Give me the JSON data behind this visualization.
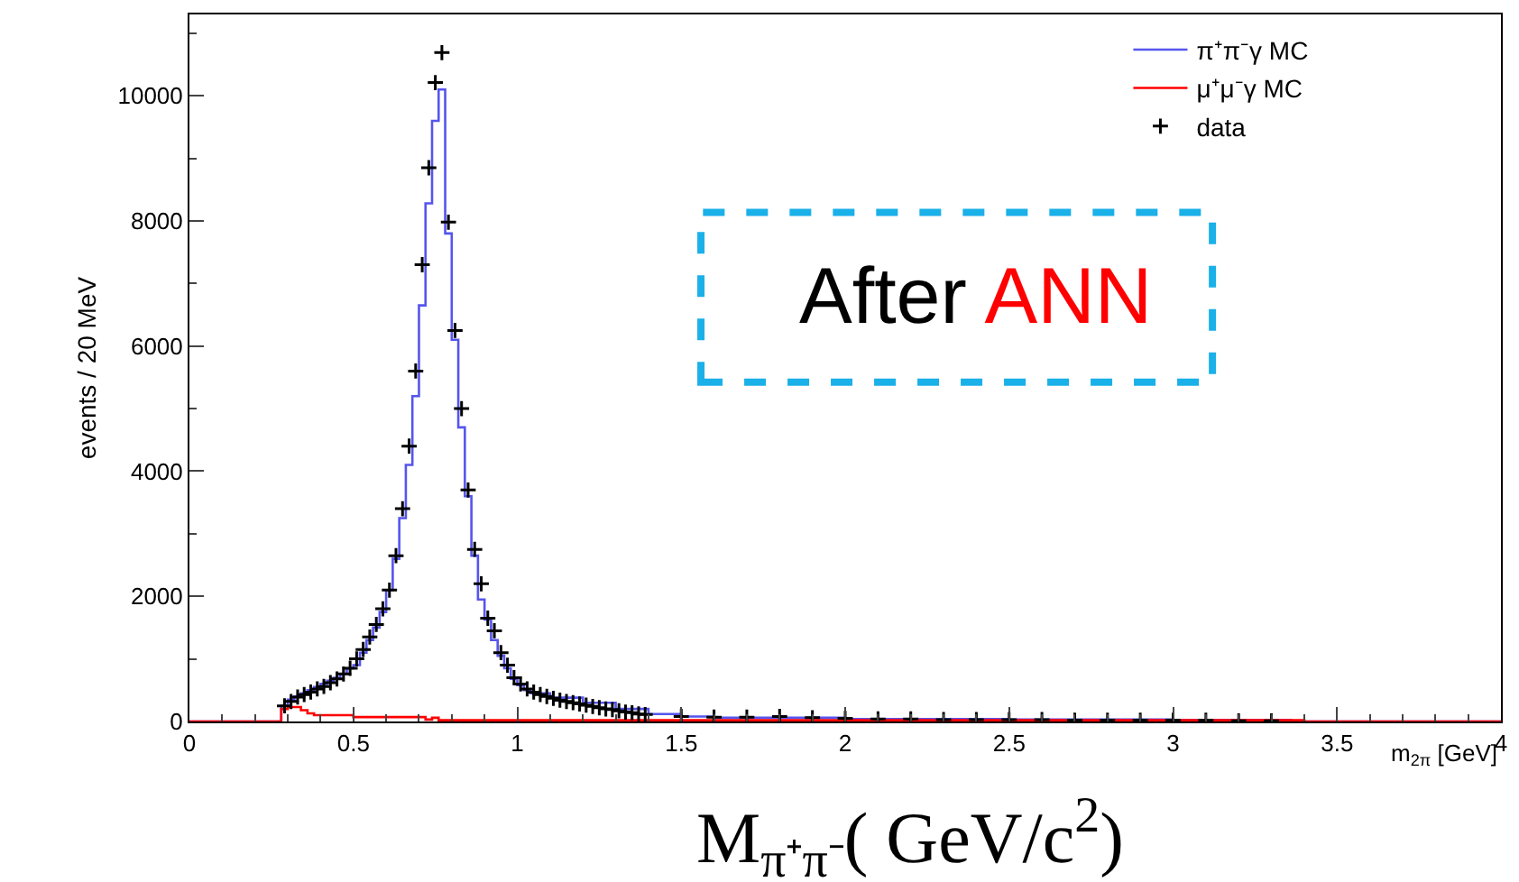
{
  "chart_data": {
    "type": "step",
    "xlabel": "m$_{2π}$ [GeV]",
    "ylabel": "events / 20 MeV",
    "xlim": [
      0,
      4
    ],
    "xticks": [
      0,
      0.5,
      1,
      1.5,
      2,
      2.5,
      3,
      3.5,
      4
    ],
    "ylim": [
      0,
      11300
    ],
    "yticks": [
      0,
      2000,
      4000,
      6000,
      8000,
      10000
    ],
    "legend": "top right",
    "annotations": [
      "After ANN",
      "M$_{π⁺π⁻}$( GeV/c$^{2}$)"
    ],
    "series": [
      {
        "name": "π⁺π⁻γ MC",
        "color": "#5555ee",
        "x": [
          0,
          0.28,
          0.3,
          0.32,
          0.34,
          0.36,
          0.38,
          0.4,
          0.42,
          0.44,
          0.46,
          0.48,
          0.5,
          0.52,
          0.54,
          0.56,
          0.58,
          0.6,
          0.62,
          0.64,
          0.66,
          0.68,
          0.7,
          0.72,
          0.74,
          0.76,
          0.78,
          0.8,
          0.82,
          0.84,
          0.86,
          0.88,
          0.9,
          0.92,
          0.94,
          0.96,
          0.98,
          1.0,
          1.02,
          1.04,
          1.1,
          1.2,
          1.3,
          1.4,
          1.5,
          1.6,
          1.8,
          2.0,
          2.5,
          3.0,
          3.36,
          4.0
        ],
        "values": [
          0,
          250,
          350,
          400,
          450,
          500,
          550,
          600,
          650,
          700,
          760,
          850,
          900,
          1100,
          1300,
          1500,
          1750,
          2100,
          2600,
          3250,
          4100,
          5200,
          6650,
          8280,
          9600,
          10100,
          7800,
          6100,
          4700,
          3600,
          2650,
          1950,
          1630,
          1300,
          1050,
          850,
          680,
          580,
          500,
          450,
          380,
          300,
          200,
          120,
          80,
          60,
          60,
          40,
          30,
          20,
          0,
          0
        ]
      },
      {
        "name": "μ⁺μ⁻γ MC",
        "color": "#ff0000",
        "x": [
          0,
          0.28,
          0.3,
          0.34,
          0.36,
          0.38,
          0.5,
          0.72,
          0.74,
          0.76,
          1.4,
          3.4,
          4.0
        ],
        "values": [
          0,
          200,
          230,
          180,
          130,
          100,
          70,
          30,
          60,
          20,
          20,
          0,
          0
        ]
      },
      {
        "name": "data",
        "color": "#000000",
        "type": "scatter",
        "x": [
          0.29,
          0.31,
          0.33,
          0.35,
          0.37,
          0.39,
          0.41,
          0.43,
          0.45,
          0.47,
          0.49,
          0.51,
          0.53,
          0.55,
          0.57,
          0.59,
          0.61,
          0.63,
          0.65,
          0.67,
          0.69,
          0.71,
          0.73,
          0.75,
          0.77,
          0.79,
          0.81,
          0.83,
          0.85,
          0.87,
          0.89,
          0.91,
          0.93,
          0.95,
          0.97,
          0.99,
          1.01,
          1.03,
          1.05,
          1.07,
          1.09,
          1.11,
          1.13,
          1.15,
          1.17,
          1.19,
          1.21,
          1.23,
          1.25,
          1.27,
          1.29,
          1.31,
          1.33,
          1.35,
          1.37,
          1.39,
          1.5,
          1.6,
          1.7,
          1.8,
          1.9,
          2.0,
          2.1,
          2.2,
          2.3,
          2.4,
          2.5,
          2.6,
          2.7,
          2.8,
          2.9,
          3.0,
          3.1,
          3.2,
          3.3
        ],
        "values": [
          250,
          320,
          390,
          430,
          470,
          520,
          560,
          620,
          680,
          760,
          850,
          1000,
          1150,
          1350,
          1550,
          1800,
          2100,
          2650,
          3400,
          4400,
          5600,
          7300,
          8850,
          10210,
          10690,
          7980,
          6250,
          5000,
          3700,
          2750,
          2200,
          1650,
          1450,
          1100,
          900,
          700,
          600,
          520,
          470,
          430,
          400,
          370,
          340,
          320,
          300,
          280,
          260,
          240,
          220,
          200,
          190,
          170,
          150,
          140,
          120,
          110,
          80,
          70,
          70,
          80,
          60,
          50,
          40,
          40,
          30,
          30,
          30,
          30,
          20,
          20,
          20,
          20,
          20,
          10,
          10
        ],
        "marker": "cross"
      }
    ]
  }
}
